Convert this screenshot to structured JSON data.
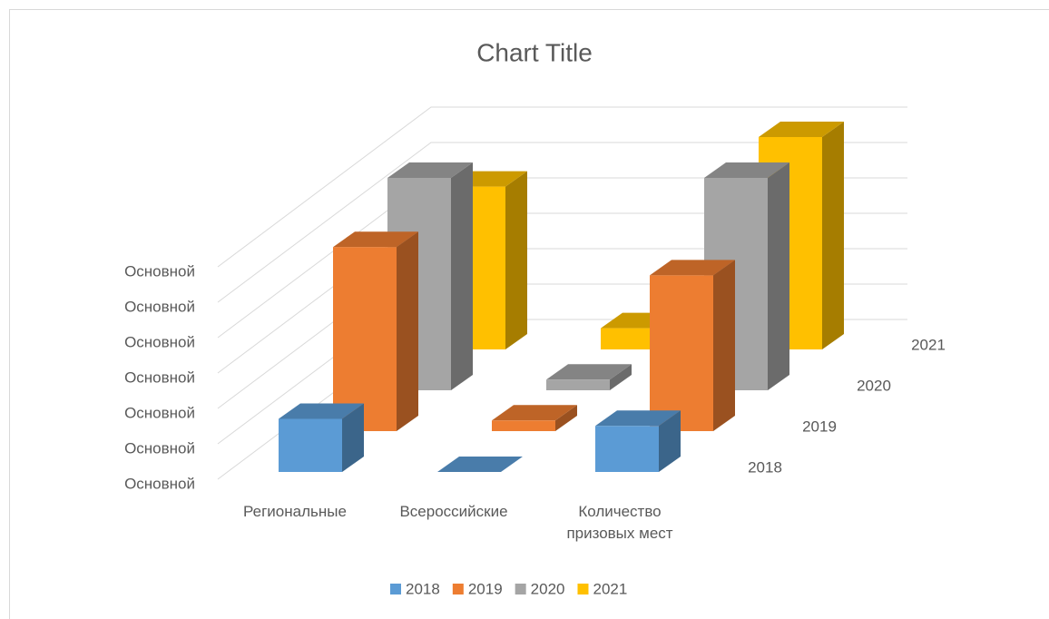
{
  "chart_data": {
    "type": "bar3d",
    "title": "Chart Title",
    "categories": [
      "Региональные",
      "Всероссийские",
      "Количество призовых мест"
    ],
    "series": [
      {
        "name": "2018",
        "color": "#5b9bd5",
        "values": [
          1.5,
          0,
          1.3
        ]
      },
      {
        "name": "2019",
        "color": "#ed7d31",
        "values": [
          5.2,
          0.3,
          4.4
        ]
      },
      {
        "name": "2020",
        "color": "#a5a5a5",
        "values": [
          6,
          0.3,
          6
        ]
      },
      {
        "name": "2021",
        "color": "#ffc000",
        "values": [
          4.6,
          0.6,
          6
        ]
      }
    ],
    "ylim": [
      0,
      6
    ],
    "yticks": [
      {
        "value": 0,
        "label": "Основной"
      },
      {
        "value": 1,
        "label": "Основной"
      },
      {
        "value": 2,
        "label": "Основной"
      },
      {
        "value": 3,
        "label": "Основной"
      },
      {
        "value": 4,
        "label": "Основной"
      },
      {
        "value": 5,
        "label": "Основной"
      },
      {
        "value": 6,
        "label": "Основной"
      }
    ],
    "grid": true,
    "legend": "bottom"
  }
}
